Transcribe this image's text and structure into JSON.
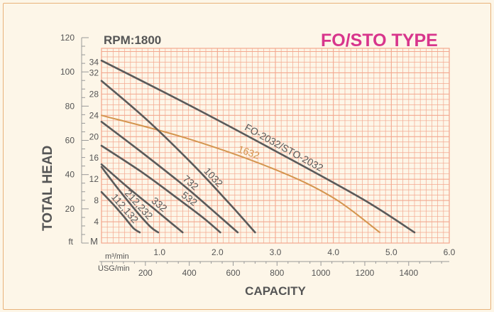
{
  "chart_data": {
    "type": "line",
    "title": "FO/STO TYPE",
    "subtitle": "RPM:1800",
    "ylabel": "TOTAL HEAD",
    "xlabel": "CAPACITY",
    "y_ft": {
      "unit": "ft",
      "ticks": [
        20,
        40,
        60,
        80,
        100,
        120
      ],
      "ylim": [
        0,
        120
      ]
    },
    "y_m": {
      "unit": "M",
      "ticks": [
        4,
        8,
        12,
        16,
        20,
        24,
        28,
        32,
        34
      ],
      "ylim": [
        0,
        36.6
      ]
    },
    "x_m3": {
      "unit": "m³/min",
      "ticks": [
        "1.0",
        "2.0",
        "3.0",
        "4.0",
        "5.0",
        "6.0"
      ],
      "xlim": [
        0,
        6
      ]
    },
    "x_usg": {
      "unit": "USG/min",
      "ticks": [
        200,
        400,
        600,
        800,
        1000,
        1200,
        1400
      ]
    },
    "colors": {
      "grid": "#f3a88f",
      "curve": "#5a5a5a",
      "highlight": "#d4954e",
      "title": "#d8358c"
    },
    "series": [
      {
        "name": "FO-2032/STO-2032",
        "highlight": false,
        "x": [
          0.0,
          1.5,
          3.0,
          4.5,
          5.4
        ],
        "y": [
          34.3,
          26.0,
          17.3,
          8.3,
          2.0
        ]
      },
      {
        "name": "1632",
        "highlight": true,
        "x": [
          0.0,
          1.5,
          3.0,
          4.0,
          4.8
        ],
        "y": [
          24.0,
          19.6,
          13.8,
          8.5,
          2.0
        ]
      },
      {
        "name": "1032",
        "highlight": false,
        "x": [
          0.0,
          0.8,
          1.6,
          2.2,
          2.65
        ],
        "y": [
          30.5,
          23.0,
          14.5,
          7.5,
          2.0
        ]
      },
      {
        "name": "732",
        "highlight": false,
        "x": [
          0.0,
          0.7,
          1.4,
          1.9,
          2.35
        ],
        "y": [
          22.8,
          17.0,
          11.0,
          6.3,
          2.0
        ]
      },
      {
        "name": "532",
        "highlight": false,
        "x": [
          0.0,
          0.7,
          1.3,
          1.75,
          2.05
        ],
        "y": [
          18.3,
          13.3,
          8.5,
          4.8,
          2.0
        ]
      },
      {
        "name": "332",
        "highlight": false,
        "x": [
          0.0,
          0.45,
          0.9,
          1.2,
          1.4
        ],
        "y": [
          14.8,
          10.5,
          6.5,
          3.8,
          2.0
        ]
      },
      {
        "name": "212,232",
        "highlight": false,
        "x": [
          0.0,
          0.3,
          0.6,
          0.85,
          0.98
        ],
        "y": [
          14.3,
          10.0,
          6.0,
          3.0,
          2.0
        ]
      },
      {
        "name": "112,132",
        "highlight": false,
        "x": [
          0.0,
          0.2,
          0.4,
          0.55,
          0.66
        ],
        "y": [
          9.6,
          7.3,
          4.8,
          2.8,
          2.0
        ]
      }
    ]
  }
}
